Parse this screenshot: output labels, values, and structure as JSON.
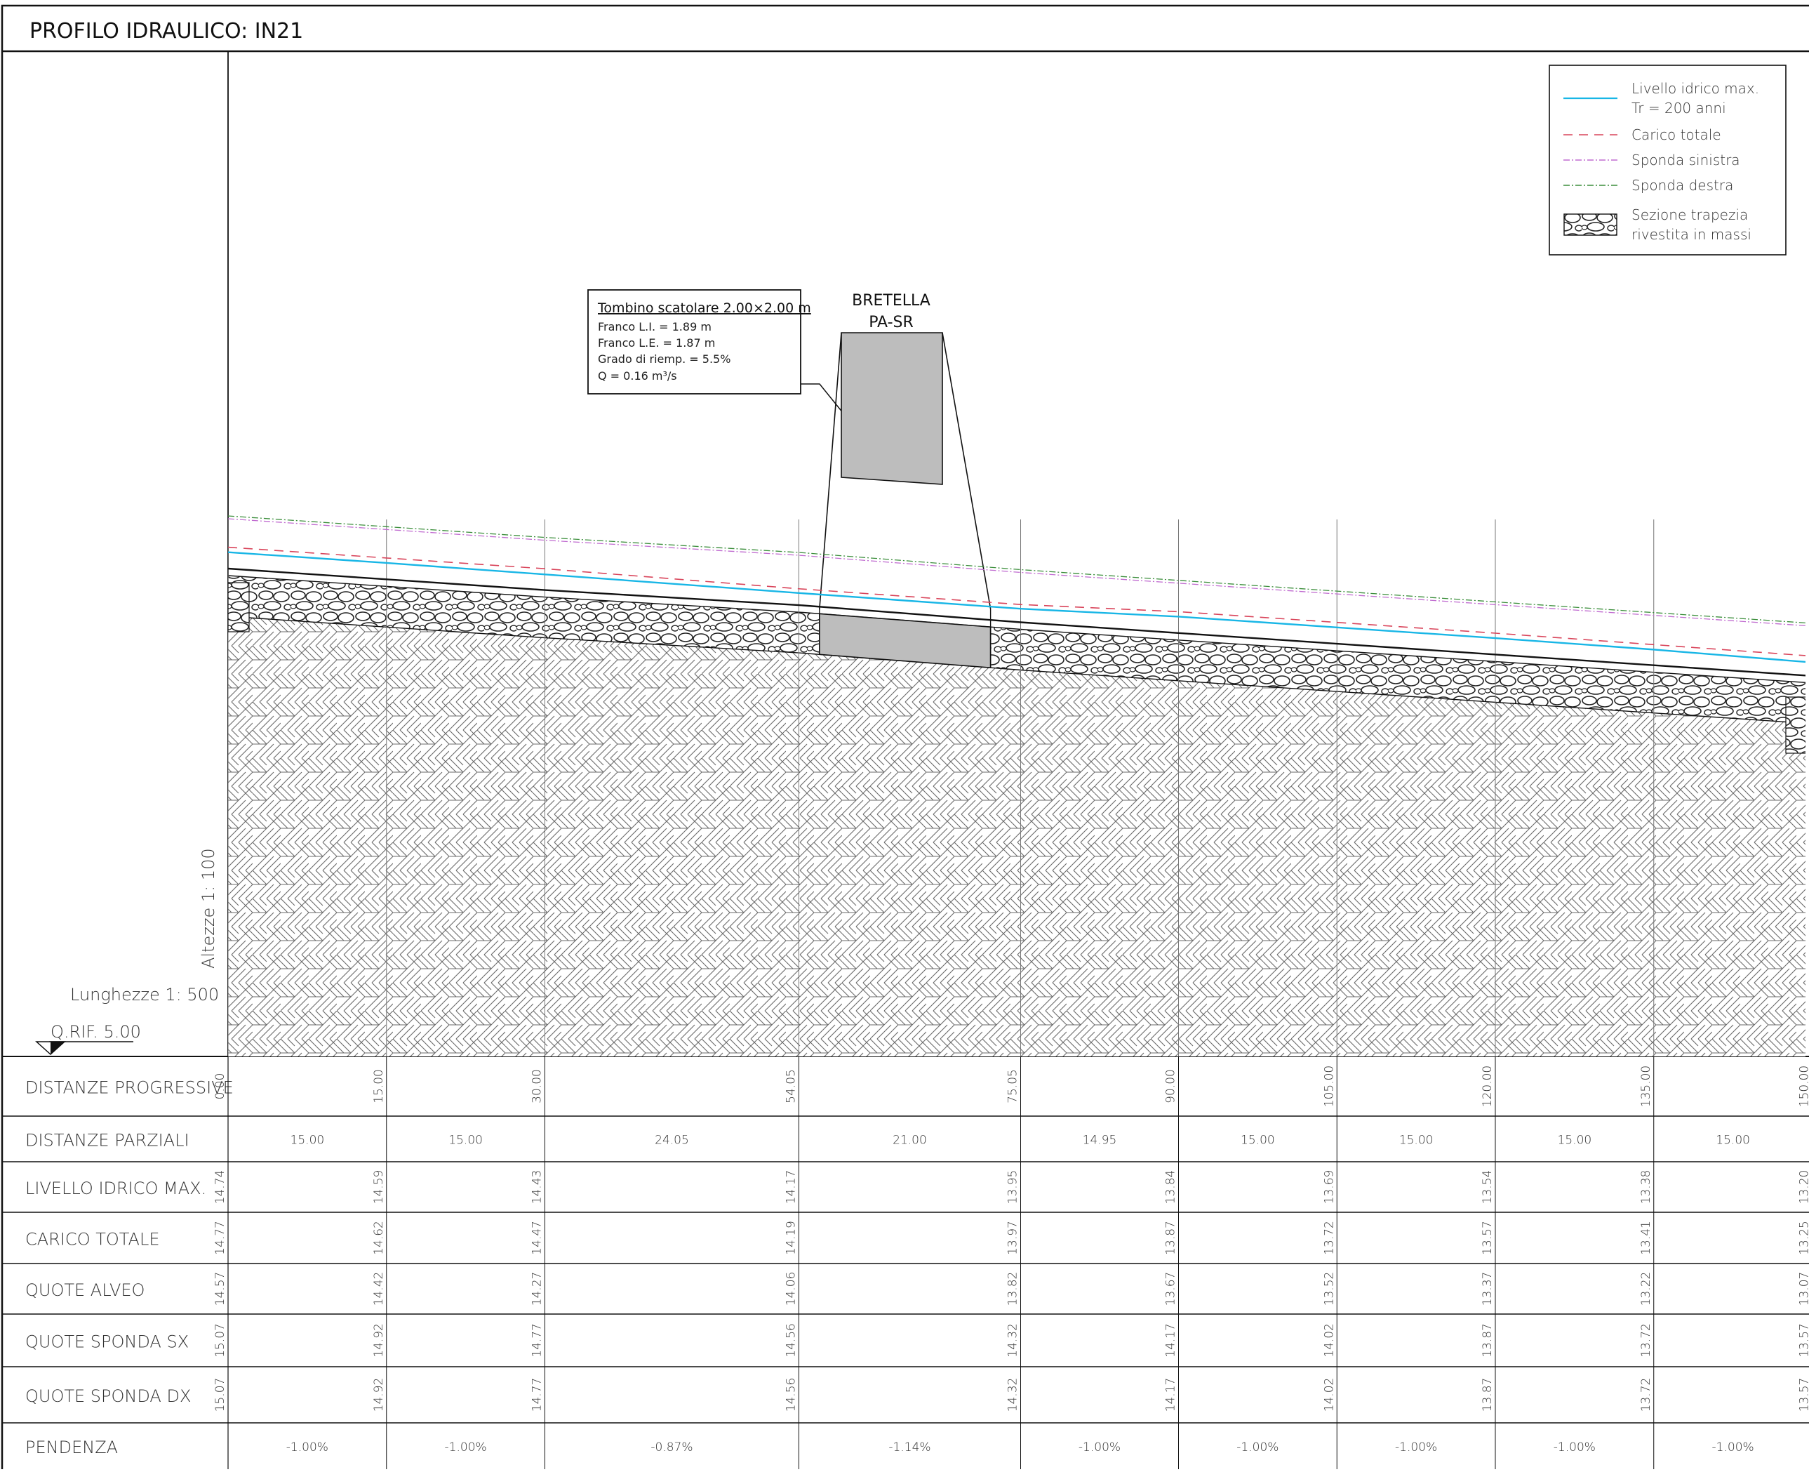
{
  "title": "PROFILO IDRAULICO: IN21",
  "legend": {
    "items": [
      {
        "line1": "Livello idrico max.",
        "line2": "Tr  =  200  anni",
        "color": "#18b6e6",
        "style": "solid"
      },
      {
        "line1": "Carico  totale",
        "line2": "",
        "color": "#d9455b",
        "style": "dashed"
      },
      {
        "line1": "Sponda  sinistra",
        "line2": "",
        "color": "#c06bd0",
        "style": "dashdot"
      },
      {
        "line1": "Sponda  destra",
        "line2": "",
        "color": "#3b8e3b",
        "style": "dashdot"
      },
      {
        "line1": "Sezione  trapezia",
        "line2": "rivestita  in  massi",
        "color": "#555555",
        "style": "rocks"
      }
    ]
  },
  "culvert_box": {
    "heading": "Tombino scatolare 2.00×2.00 m",
    "lines": [
      "Franco  L.I.  =  1.89  m",
      "Franco  L.E.  =  1.87  m",
      "Grado  di  riemp.  =  5.5%",
      "Q  =  0.16  m³/s"
    ]
  },
  "road_label": {
    "line1": "BRETELLA",
    "line2": "PA-SR"
  },
  "scales": {
    "heights": "Altezze  1:  100",
    "lengths": "Lunghezze  1:  500",
    "reference": "Q.RIF.  5.00"
  },
  "profile": {
    "stations": [
      0.0,
      15.0,
      30.0,
      54.05,
      75.05,
      90.0,
      105.0,
      120.0,
      135.0,
      150.0
    ],
    "culvert_start": 56.0,
    "culvert_end": 72.2,
    "reference_level": 5.0,
    "water_level": [
      14.74,
      14.59,
      14.43,
      14.17,
      13.95,
      13.84,
      13.69,
      13.54,
      13.38,
      13.2
    ],
    "total_head": [
      14.77,
      14.62,
      14.47,
      14.19,
      13.97,
      13.87,
      13.72,
      13.57,
      13.41,
      13.25
    ],
    "bed_level": [
      14.57,
      14.42,
      14.27,
      14.06,
      13.82,
      13.67,
      13.52,
      13.37,
      13.22,
      13.07
    ],
    "left_bank": [
      15.07,
      14.92,
      14.77,
      14.56,
      14.32,
      14.17,
      14.02,
      13.87,
      13.72,
      13.57
    ],
    "right_bank": [
      15.07,
      14.92,
      14.77,
      14.56,
      14.32,
      14.17,
      14.02,
      13.87,
      13.72,
      13.57
    ]
  },
  "table": {
    "rows": [
      {
        "label": "DISTANZE  PROGRESSIVE",
        "type": "station",
        "values": [
          "0.00",
          "15.00",
          "30.00",
          "54.05",
          "75.05",
          "90.00",
          "105.00",
          "120.00",
          "135.00",
          "150.00"
        ]
      },
      {
        "label": "DISTANZE  PARZIALI",
        "type": "segment",
        "values": [
          "15.00",
          "15.00",
          "24.05",
          "21.00",
          "14.95",
          "15.00",
          "15.00",
          "15.00",
          "15.00"
        ]
      },
      {
        "label": "LIVELLO  IDRICO  MAX.",
        "type": "station",
        "values": [
          "14.74",
          "14.59",
          "14.43",
          "14.17",
          "13.95",
          "13.84",
          "13.69",
          "13.54",
          "13.38",
          "13.20"
        ]
      },
      {
        "label": "CARICO  TOTALE",
        "type": "station",
        "values": [
          "14.77",
          "14.62",
          "14.47",
          "14.19",
          "13.97",
          "13.87",
          "13.72",
          "13.57",
          "13.41",
          "13.25"
        ]
      },
      {
        "label": "QUOTE  ALVEO",
        "type": "station",
        "values": [
          "14.57",
          "14.42",
          "14.27",
          "14.06",
          "13.82",
          "13.67",
          "13.52",
          "13.37",
          "13.22",
          "13.07"
        ]
      },
      {
        "label": "QUOTE  SPONDA  SX",
        "type": "station",
        "values": [
          "15.07",
          "14.92",
          "14.77",
          "14.56",
          "14.32",
          "14.17",
          "14.02",
          "13.87",
          "13.72",
          "13.57"
        ]
      },
      {
        "label": "QUOTE  SPONDA  DX",
        "type": "station",
        "values": [
          "15.07",
          "14.92",
          "14.77",
          "14.56",
          "14.32",
          "14.17",
          "14.02",
          "13.87",
          "13.72",
          "13.57"
        ]
      },
      {
        "label": "PENDENZA",
        "type": "segment",
        "values": [
          "-1.00%",
          "-1.00%",
          "-0.87%",
          "-1.14%",
          "-1.00%",
          "-1.00%",
          "-1.00%",
          "-1.00%",
          "-1.00%"
        ]
      }
    ]
  }
}
